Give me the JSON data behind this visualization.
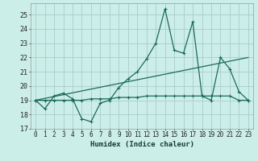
{
  "xlabel": "Humidex (Indice chaleur)",
  "xlim": [
    -0.5,
    23.5
  ],
  "ylim": [
    17,
    25.8
  ],
  "yticks": [
    17,
    18,
    19,
    20,
    21,
    22,
    23,
    24,
    25
  ],
  "xticks": [
    0,
    1,
    2,
    3,
    4,
    5,
    6,
    7,
    8,
    9,
    10,
    11,
    12,
    13,
    14,
    15,
    16,
    17,
    18,
    19,
    20,
    21,
    22,
    23
  ],
  "bg_color": "#cceee8",
  "line_color": "#1a6b5a",
  "grid_color": "#aacccc",
  "series1_x": [
    0,
    1,
    2,
    3,
    4,
    5,
    6,
    7,
    8,
    9,
    10,
    11,
    12,
    13,
    14,
    15,
    16,
    17,
    18,
    19,
    20,
    21,
    22,
    23
  ],
  "series1_y": [
    19.0,
    18.4,
    19.3,
    19.5,
    19.1,
    17.7,
    17.5,
    18.8,
    19.0,
    19.9,
    20.5,
    21.0,
    21.9,
    23.0,
    25.4,
    22.5,
    22.3,
    24.5,
    19.3,
    19.0,
    22.0,
    21.2,
    19.6,
    19.0
  ],
  "series2_x": [
    0,
    1,
    2,
    3,
    4,
    5,
    6,
    7,
    8,
    9,
    10,
    11,
    12,
    13,
    14,
    15,
    16,
    17,
    18,
    19,
    20,
    21,
    22,
    23
  ],
  "series2_y": [
    19.0,
    19.0,
    19.0,
    19.0,
    19.0,
    19.0,
    19.1,
    19.1,
    19.1,
    19.2,
    19.2,
    19.2,
    19.3,
    19.3,
    19.3,
    19.3,
    19.3,
    19.3,
    19.3,
    19.3,
    19.3,
    19.3,
    19.0,
    19.0
  ],
  "series3_x": [
    0,
    23
  ],
  "series3_y": [
    19.0,
    22.0
  ]
}
